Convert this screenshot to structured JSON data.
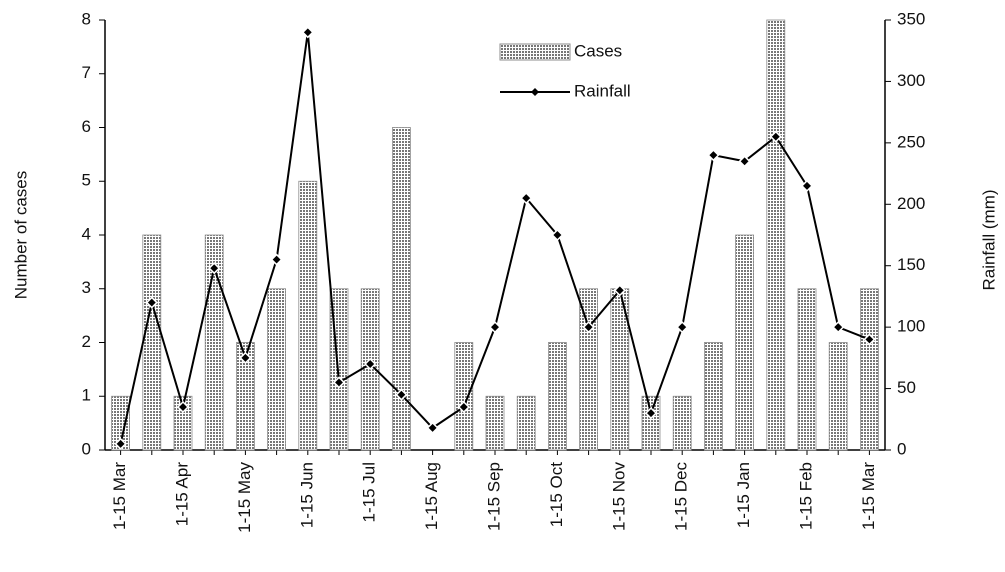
{
  "chart_data": {
    "type": "bar-line",
    "categories": [
      "1-15 Mar",
      null,
      "1-15 Apr",
      null,
      "1-15 May",
      null,
      "1-15 Jun",
      null,
      "1-15 Jul",
      null,
      "1-15 Aug",
      null,
      "1-15 Sep",
      null,
      "1-15 Oct",
      null,
      "1-15 Nov",
      null,
      "1-15 Dec",
      null,
      "1-15 Jan",
      null,
      "1-15 Feb",
      null,
      "1-15 Mar"
    ],
    "series": [
      {
        "name": "Cases",
        "type": "bar",
        "color": "#8c8c8c",
        "values": [
          1,
          4,
          1,
          4,
          2,
          3,
          5,
          3,
          3,
          6,
          0,
          2,
          1,
          1,
          2,
          3,
          3,
          1,
          1,
          2,
          4,
          8,
          3,
          2,
          3
        ]
      },
      {
        "name": "Rainfall",
        "type": "line",
        "axis": "y2",
        "color": "#000000",
        "values": [
          5,
          120,
          35,
          148,
          75,
          155,
          340,
          55,
          70,
          45,
          18,
          35,
          100,
          205,
          175,
          100,
          130,
          30,
          100,
          240,
          235,
          255,
          215,
          100,
          90
        ]
      }
    ],
    "ylabel": "Number of cases",
    "y2label": "Rainfall (mm)",
    "ylim": [
      0,
      8
    ],
    "yticks": [
      0,
      1,
      2,
      3,
      4,
      5,
      6,
      7,
      8
    ],
    "y2lim": [
      0,
      350
    ],
    "y2ticks": [
      0,
      50,
      100,
      150,
      200,
      250,
      300,
      350
    ]
  }
}
